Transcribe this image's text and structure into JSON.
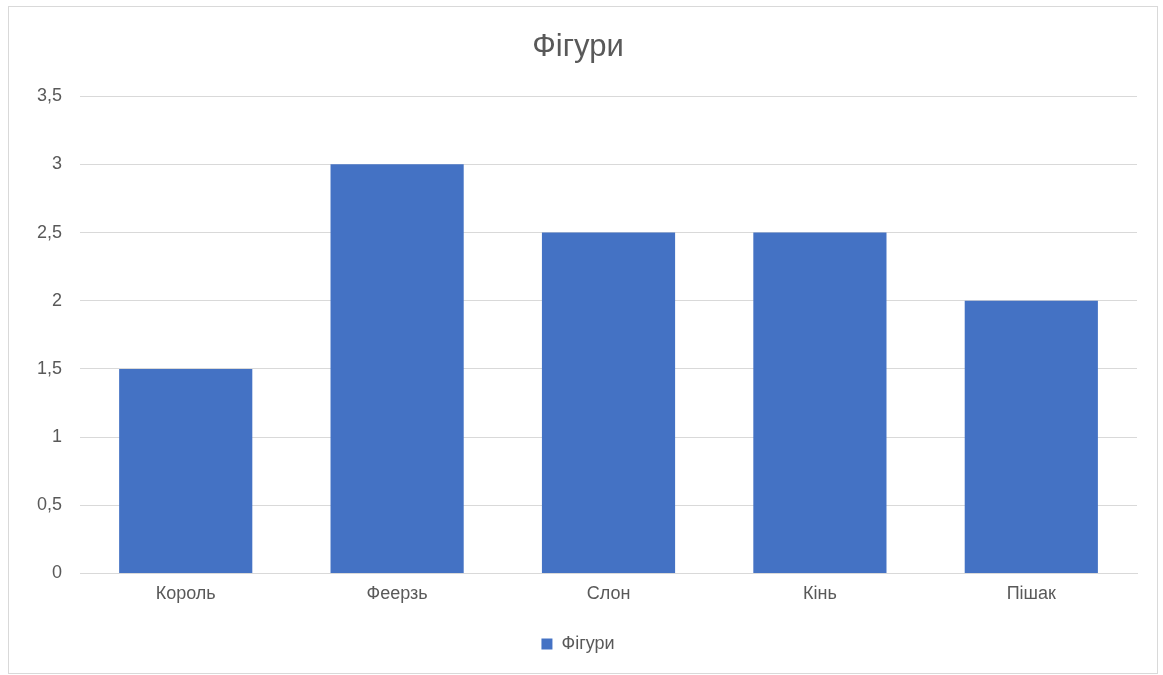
{
  "chart_data": {
    "type": "bar",
    "title": "Фігури",
    "categories": [
      "Король",
      "Феерзь",
      "Слон",
      "Кінь",
      "Пішак"
    ],
    "series": [
      {
        "name": "Фігури",
        "color": "#4472c4",
        "values": [
          1.5,
          3,
          2.5,
          2.5,
          2
        ]
      }
    ],
    "ylim": [
      0,
      3.5
    ],
    "yticks": [
      0,
      {
        "value": 0.5,
        "label": "0,5"
      },
      1,
      {
        "value": 1.5,
        "label": "1,5"
      },
      2,
      {
        "value": 2.5,
        "label": "2,5"
      },
      3,
      {
        "value": 3.5,
        "label": "3,5"
      }
    ],
    "grid": "y",
    "legend": "bottom"
  }
}
